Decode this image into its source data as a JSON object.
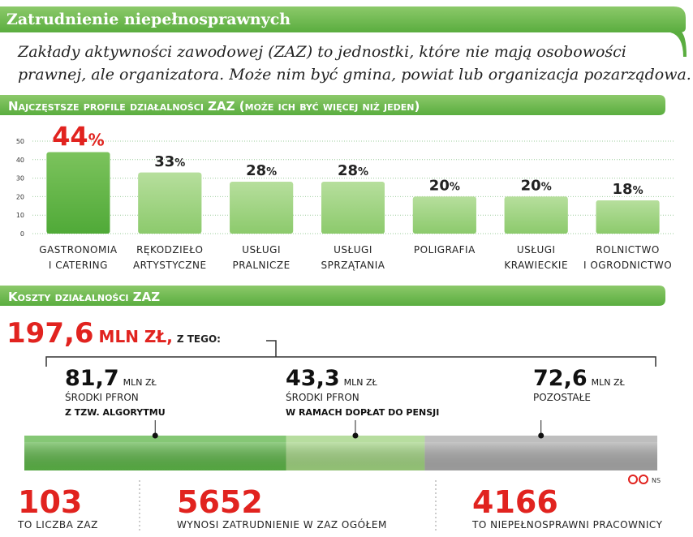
{
  "header": {
    "title": "Zatrudnienie niepełnosprawnych",
    "intro": [
      "Zakłady aktywności zawodowej (ZAZ) to jednostki, które nie mają osobowości",
      "prawnej, ale organizatora. Może nim być gmina, powiat lub organizacja pozarządowa."
    ]
  },
  "chart_data": {
    "type": "bar",
    "title": "Najczęstsze profile działalności ZAZ (może ich być więcej niż jeden)",
    "categories": [
      [
        "GASTRONOMIA",
        "I CATERING"
      ],
      [
        "RĘKODZIEŁO",
        "ARTYSTYCZNE"
      ],
      [
        "USŁUGI",
        "PRALNICZE"
      ],
      [
        "USŁUGI",
        "SPRZĄTANIA"
      ],
      [
        "POLIGRAFIA"
      ],
      [
        "USŁUGI",
        "KRAWIECKIE"
      ],
      [
        "ROLNICTWO",
        "I OGRODNICTWO"
      ]
    ],
    "values": [
      44,
      33,
      28,
      28,
      20,
      20,
      18
    ],
    "value_unit": "%",
    "color": "#9fd27f",
    "highlight_color": "#5fb847",
    "ylim": [
      0,
      50
    ],
    "yticks": [
      0,
      10,
      20,
      30,
      40,
      50
    ],
    "grid": true
  },
  "costs": {
    "title": "Koszty działalności ZAZ",
    "total": {
      "value": 197.6,
      "label": "197,6"
    },
    "total_unit": "MLN ZŁ,",
    "of_which": "Z TEGO:",
    "items": [
      {
        "value": 81.7,
        "label": "81,7",
        "unit": "MLN ZŁ",
        "line1": "ŚRODKI PFRON",
        "line2": "Z TZW. ALGORYTMU",
        "color": "#5cb447"
      },
      {
        "value": 43.3,
        "label": "43,3",
        "unit": "MLN ZŁ",
        "line1": "ŚRODKI PFRON",
        "line2": "W RAMACH DOPŁAT DO PENSJI",
        "color": "#9fd27f"
      },
      {
        "value": 72.6,
        "label": "72,6",
        "unit": "MLN ZŁ",
        "line1": "POZOSTAŁE",
        "color": "#a8a8a8"
      }
    ]
  },
  "stats": [
    {
      "number": "103",
      "text": "TO LICZBA ZAZ"
    },
    {
      "number": "5652",
      "text": "WYNOSI ZATRUDNIENIE W ZAZ OGÓŁEM"
    },
    {
      "number": "4166",
      "text": "TO NIEPEŁNOSPRAWNI PRACOWNICY"
    }
  ],
  "credit": "NS"
}
